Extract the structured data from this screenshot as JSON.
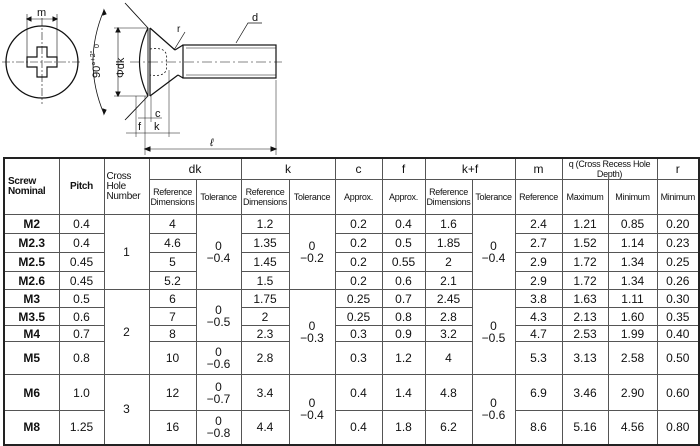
{
  "drawing": {
    "labels": {
      "m": "m",
      "d": "d",
      "r": "r",
      "dk": "Φdk",
      "angle": "90°",
      "angle_tol_upper": "+2°",
      "angle_tol_lower": "0",
      "c": "c",
      "f": "f",
      "k": "k",
      "l": "ℓ"
    }
  },
  "table": {
    "headers": {
      "screw_nominal": "Screw Nominal",
      "pitch": "Pitch",
      "cross_hole": "Cross Hole Number",
      "dk": "dk",
      "k": "k",
      "c": "c",
      "f": "f",
      "kf": "k+f",
      "m": "m",
      "q": "q (Cross Recess Hole Depth)",
      "r": "r",
      "ref_dim": "Reference Dimensions",
      "tolerance": "Tolerance",
      "approx": "Approx.",
      "reference": "Reference",
      "maximum": "Maximum",
      "minimum": "Minimum"
    },
    "rows": [
      {
        "nominal": "M2",
        "pitch": "0.4",
        "dk": "4",
        "k": "1.2",
        "c": "0.2",
        "f": "0.4",
        "kf": "1.6",
        "m": "2.4",
        "qmax": "1.21",
        "qmin": "0.85",
        "r": "0.20"
      },
      {
        "nominal": "M2.3",
        "pitch": "0.4",
        "dk": "4.6",
        "k": "1.35",
        "c": "0.2",
        "f": "0.5",
        "kf": "1.85",
        "m": "2.7",
        "qmax": "1.52",
        "qmin": "1.14",
        "r": "0.23"
      },
      {
        "nominal": "M2.5",
        "pitch": "0.45",
        "dk": "5",
        "k": "1.45",
        "c": "0.2",
        "f": "0.55",
        "kf": "2",
        "m": "2.9",
        "qmax": "1.72",
        "qmin": "1.34",
        "r": "0.25"
      },
      {
        "nominal": "M2.6",
        "pitch": "0.45",
        "dk": "5.2",
        "k": "1.5",
        "c": "0.2",
        "f": "0.6",
        "kf": "2.1",
        "m": "2.9",
        "qmax": "1.72",
        "qmin": "1.34",
        "r": "0.26"
      },
      {
        "nominal": "M3",
        "pitch": "0.5",
        "dk": "6",
        "k": "1.75",
        "c": "0.25",
        "f": "0.7",
        "kf": "2.45",
        "m": "3.8",
        "qmax": "1.63",
        "qmin": "1.11",
        "r": "0.30"
      },
      {
        "nominal": "M3.5",
        "pitch": "0.6",
        "dk": "7",
        "k": "2",
        "c": "0.25",
        "f": "0.8",
        "kf": "2.8",
        "m": "4.3",
        "qmax": "2.13",
        "qmin": "1.60",
        "r": "0.35"
      },
      {
        "nominal": "M4",
        "pitch": "0.7",
        "dk": "8",
        "k": "2.3",
        "c": "0.3",
        "f": "0.9",
        "kf": "3.2",
        "m": "4.7",
        "qmax": "2.53",
        "qmin": "1.99",
        "r": "0.40"
      },
      {
        "nominal": "M5",
        "pitch": "0.8",
        "dk": "10",
        "k": "2.8",
        "c": "0.3",
        "f": "1.2",
        "kf": "4",
        "m": "5.3",
        "qmax": "3.13",
        "qmin": "2.58",
        "r": "0.50"
      },
      {
        "nominal": "M6",
        "pitch": "1.0",
        "dk": "12",
        "k": "3.4",
        "c": "0.4",
        "f": "1.4",
        "kf": "4.8",
        "m": "6.9",
        "qmax": "3.46",
        "qmin": "2.90",
        "r": "0.60"
      },
      {
        "nominal": "M8",
        "pitch": "1.25",
        "dk": "16",
        "k": "4.4",
        "c": "0.4",
        "f": "1.8",
        "kf": "6.2",
        "m": "8.6",
        "qmax": "5.16",
        "qmin": "4.56",
        "r": "0.80"
      }
    ],
    "cross_hole_groups": [
      "1",
      "2",
      "3"
    ],
    "dk_tol": [
      {
        "upper": "0",
        "lower": "−0.4"
      },
      {
        "upper": "0",
        "lower": "−0.5"
      },
      {
        "upper": "0",
        "lower": "−0.6"
      },
      {
        "upper": "0",
        "lower": "−0.7"
      },
      {
        "upper": "0",
        "lower": "−0.8"
      }
    ],
    "k_tol": [
      {
        "upper": "0",
        "lower": "−0.2"
      },
      {
        "upper": "0",
        "lower": "−0.3"
      },
      {
        "upper": "0",
        "lower": "−0.4"
      }
    ],
    "kf_tol": [
      {
        "upper": "0",
        "lower": "−0.4"
      },
      {
        "upper": "0",
        "lower": "−0.5"
      },
      {
        "upper": "0",
        "lower": "−0.6"
      }
    ]
  }
}
